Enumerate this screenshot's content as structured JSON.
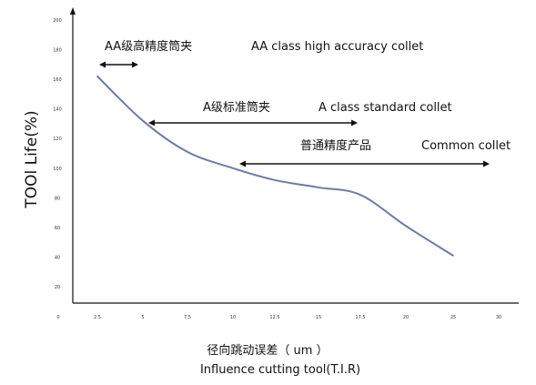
{
  "chart_data": {
    "type": "line",
    "ylabel": "TOOl Life(%)",
    "xlabel_cn": "径向跳动误差（ um ）",
    "xlabel_en": "Influence cutting tool(T.I.R)",
    "x_ticks": [
      "0",
      "2.5",
      "5",
      "7.5",
      "10",
      "12.5",
      "15",
      "17.5",
      "20",
      "25",
      "30"
    ],
    "y_ticks": [
      "20",
      "40",
      "60",
      "80",
      "100",
      "120",
      "140",
      "160",
      "180",
      "200"
    ],
    "x": [
      "2.5",
      "5",
      "7.5",
      "10",
      "12.5",
      "15",
      "17.5",
      "20",
      "25"
    ],
    "values": [
      162,
      132,
      111,
      100,
      92,
      87,
      82,
      61,
      41
    ],
    "ylim": [
      0,
      205
    ],
    "grid": false,
    "annotations": [
      {
        "cn": "AA级高精度筒夹",
        "en": "AA class high accuracy collet",
        "range": [
          "2.5",
          "5"
        ]
      },
      {
        "cn": "A级标准筒夹",
        "en": "A class standard collet",
        "range": [
          "5",
          "17.5"
        ]
      },
      {
        "cn": "普通精度产品",
        "en": "Common collet",
        "range": [
          "10",
          "30"
        ]
      }
    ],
    "colors": {
      "line": "#6f7aa6",
      "axis": "#111111",
      "arrow": "#111111"
    }
  }
}
